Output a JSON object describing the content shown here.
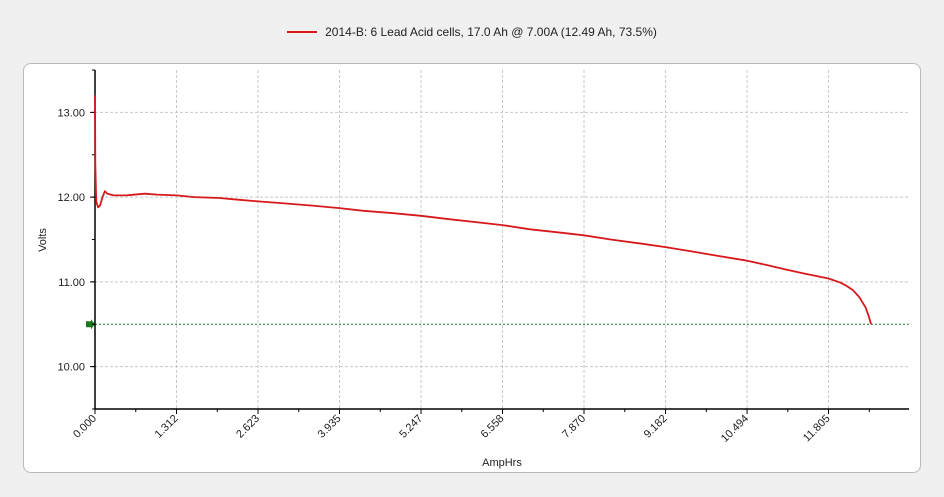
{
  "legend": {
    "label": "2014-B: 6 Lead Acid cells, 17.0 Ah @ 7.00A (12.49 Ah, 73.5%)",
    "color": "#d7191c"
  },
  "chart_data": {
    "type": "line",
    "xlabel": "AmpHrs",
    "ylabel": "Volts",
    "xlim": [
      0,
      13.1
    ],
    "ylim": [
      9.5,
      13.5
    ],
    "x_ticks": [
      "0.000",
      "1.312",
      "2.623",
      "3.935",
      "5.247",
      "6.558",
      "7.870",
      "9.182",
      "10.494",
      "11.805"
    ],
    "y_ticks": [
      "10.00",
      "11.00",
      "12.00",
      "13.00"
    ],
    "grid": true,
    "cutoff": {
      "value": 10.5,
      "color": "#1a7a1a"
    },
    "series": [
      {
        "name": "2014-B: 6 Lead Acid cells, 17.0 Ah @ 7.00A (12.49 Ah, 73.5%)",
        "color": "#d7191c",
        "x": [
          0.0,
          0.005,
          0.02,
          0.05,
          0.08,
          0.12,
          0.16,
          0.2,
          0.3,
          0.5,
          0.8,
          1.0,
          1.312,
          1.6,
          2.0,
          2.3,
          2.623,
          3.0,
          3.5,
          3.935,
          4.3,
          4.8,
          5.247,
          5.7,
          6.2,
          6.558,
          7.0,
          7.5,
          7.87,
          8.3,
          8.8,
          9.182,
          9.6,
          10.0,
          10.494,
          10.8,
          11.1,
          11.4,
          11.805,
          12.0,
          12.1,
          12.2,
          12.3,
          12.4,
          12.45,
          12.49
        ],
        "y": [
          13.2,
          12.4,
          11.95,
          11.88,
          11.9,
          12.0,
          12.07,
          12.04,
          12.02,
          12.02,
          12.04,
          12.03,
          12.02,
          12.0,
          11.99,
          11.97,
          11.95,
          11.93,
          11.9,
          11.87,
          11.84,
          11.81,
          11.78,
          11.74,
          11.7,
          11.67,
          11.62,
          11.58,
          11.55,
          11.5,
          11.45,
          11.41,
          11.36,
          11.31,
          11.25,
          11.2,
          11.15,
          11.1,
          11.04,
          10.99,
          10.95,
          10.9,
          10.82,
          10.7,
          10.6,
          10.5
        ]
      }
    ]
  }
}
